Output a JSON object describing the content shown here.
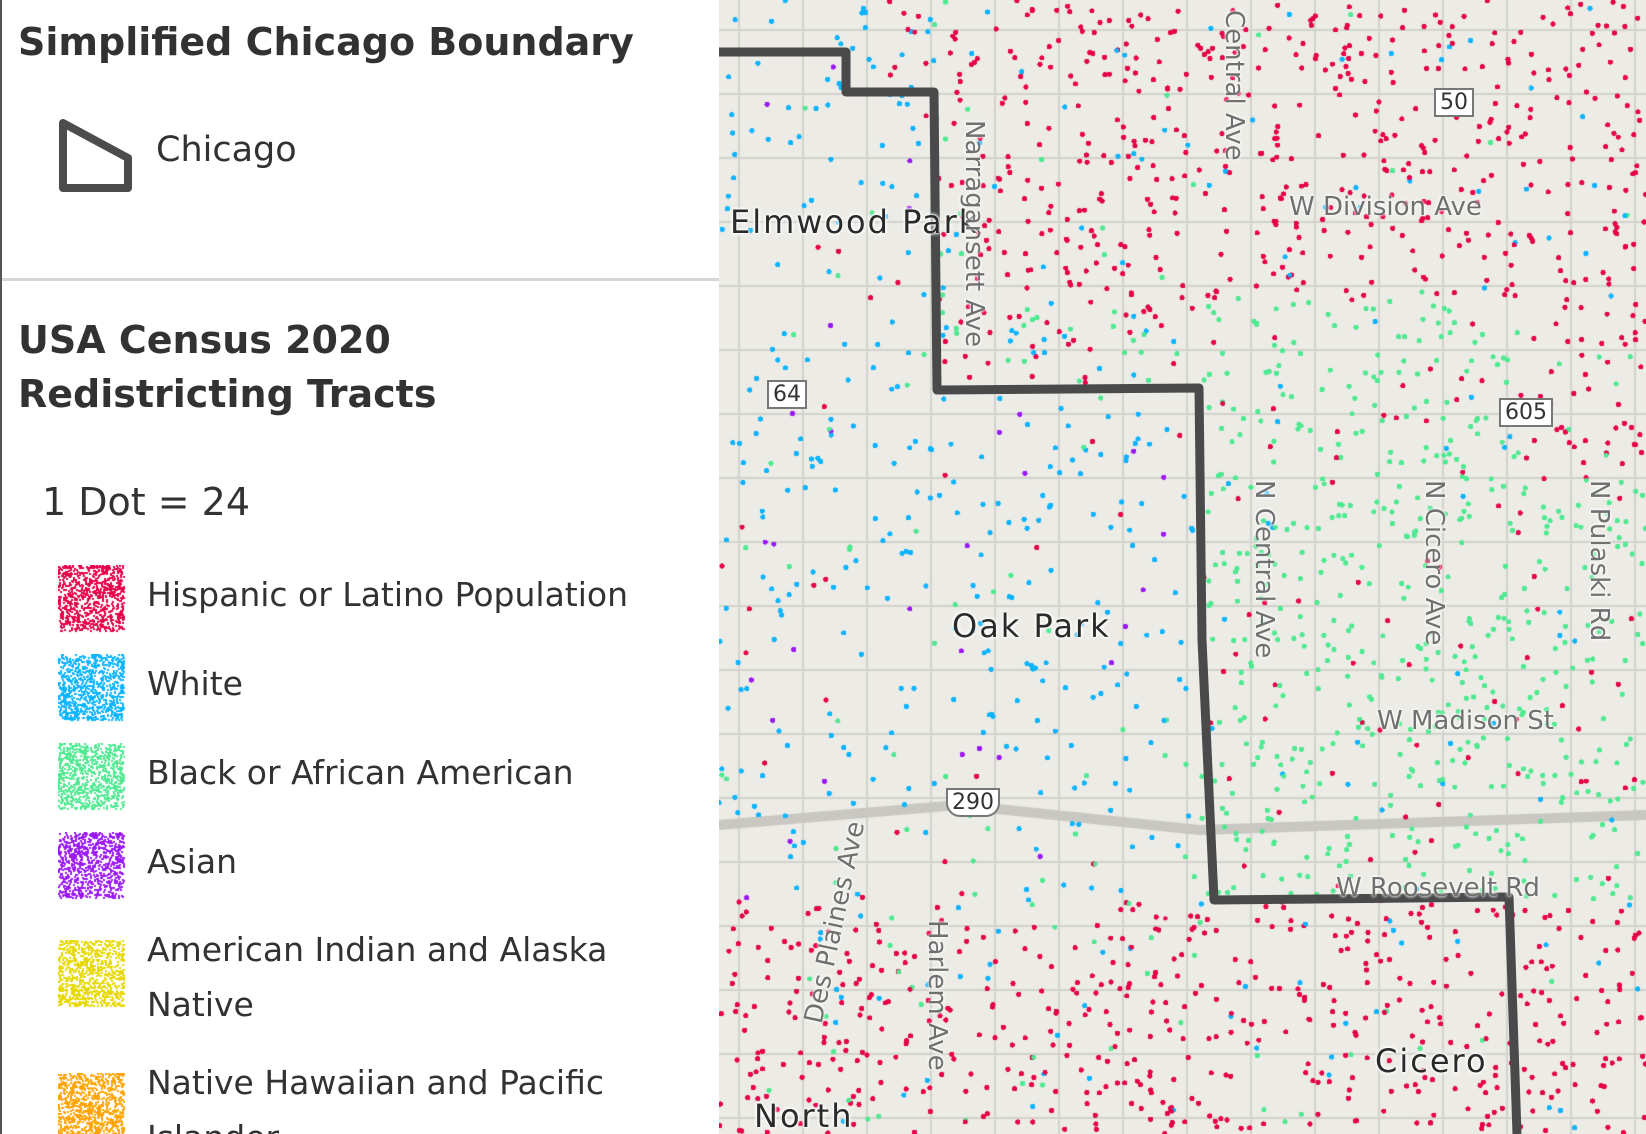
{
  "legend": {
    "boundary_layer": {
      "title": "Simplified Chicago Boundary",
      "items": [
        {
          "label": "Chicago",
          "icon": "polygon-outline-icon",
          "color": "#4c4c4c"
        }
      ]
    },
    "census_layer": {
      "title": "USA Census 2020 Redistricting Tracts",
      "dot_value_text": "1 Dot = 24",
      "items": [
        {
          "label": "Hispanic or Latino Population",
          "color": "#e60049"
        },
        {
          "label": "White",
          "color": "#0bb4ff"
        },
        {
          "label": "Black or African American",
          "color": "#50e991"
        },
        {
          "label": "Asian",
          "color": "#9b19f5"
        },
        {
          "label": "American Indian and Alaska Native",
          "color": "#e6d800"
        },
        {
          "label": "Native Hawaiian and Pacific Islander",
          "color": "#ffa300"
        }
      ]
    }
  },
  "map": {
    "place_labels": [
      "Elmwood Park",
      "Oak Park",
      "Cicero",
      "North"
    ],
    "street_labels": [
      "Narragansett Ave",
      "Central Ave",
      "W Division Ave",
      "N Central Ave",
      "N Cicero Ave",
      "N Pulaski Rd",
      "W Madison St",
      "W Roosevelt Rd",
      "Des Plaines Ave",
      "Harlem Ave"
    ],
    "shields": [
      "50",
      "64",
      "290",
      "605"
    ],
    "boundary_color": "#4a4a4a"
  }
}
